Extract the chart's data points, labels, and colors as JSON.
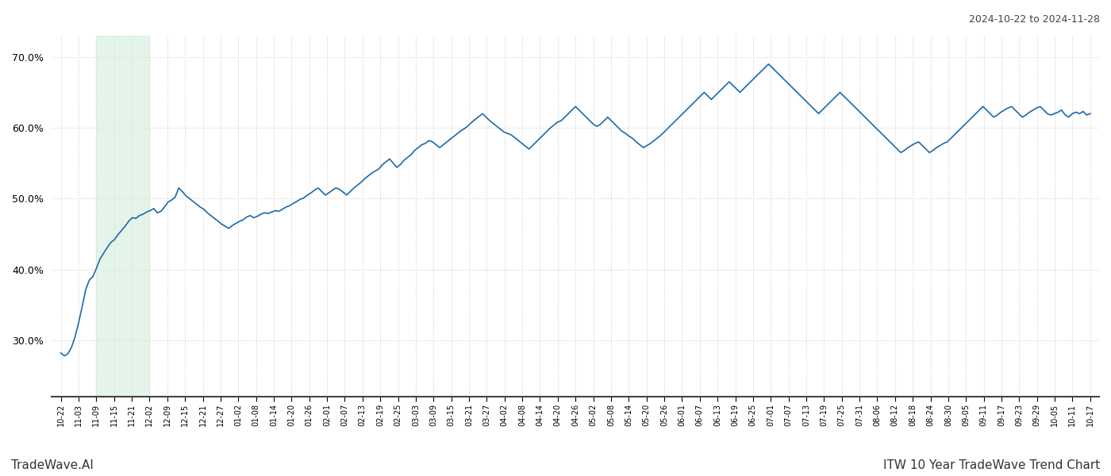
{
  "title_top_right": "2024-10-22 to 2024-11-28",
  "title_bottom_right": "ITW 10 Year TradeWave Trend Chart",
  "title_bottom_left": "TradeWave.AI",
  "line_color": "#1a6aad",
  "line_width": 1.2,
  "shade_color": "#d4edda",
  "shade_alpha": 0.6,
  "ylim": [
    22,
    73
  ],
  "yticks": [
    30,
    40,
    50,
    60,
    70
  ],
  "ytick_labels": [
    "30.0%",
    "40.0%",
    "50.0%",
    "60.0%",
    "70.0%"
  ],
  "grid_color": "#cccccc",
  "background_color": "#ffffff",
  "x_labels": [
    "10-22",
    "11-03",
    "11-09",
    "11-15",
    "11-21",
    "12-02",
    "12-09",
    "12-15",
    "12-21",
    "12-27",
    "01-02",
    "01-08",
    "01-14",
    "01-20",
    "01-26",
    "02-01",
    "02-07",
    "02-13",
    "02-19",
    "02-25",
    "03-03",
    "03-09",
    "03-15",
    "03-21",
    "03-27",
    "04-02",
    "04-08",
    "04-14",
    "04-20",
    "04-26",
    "05-02",
    "05-08",
    "05-14",
    "05-20",
    "05-26",
    "06-01",
    "06-07",
    "06-13",
    "06-19",
    "06-25",
    "07-01",
    "07-07",
    "07-13",
    "07-19",
    "07-25",
    "07-31",
    "08-06",
    "08-12",
    "08-18",
    "08-24",
    "08-30",
    "09-05",
    "09-11",
    "09-17",
    "09-23",
    "09-29",
    "10-05",
    "10-11",
    "10-17"
  ],
  "shade_x_start_label": "11-09",
  "shade_x_end_label": "12-02",
  "y_values": [
    28.2,
    27.8,
    28.1,
    29.0,
    30.5,
    32.5,
    34.8,
    37.2,
    38.5,
    39.0,
    40.2,
    41.5,
    42.3,
    43.1,
    43.8,
    44.2,
    44.9,
    45.5,
    46.1,
    46.8,
    47.3,
    47.2,
    47.6,
    47.8,
    48.1,
    48.3,
    48.6,
    48.0,
    48.2,
    48.8,
    49.5,
    49.8,
    50.2,
    51.5,
    51.0,
    50.4,
    50.0,
    49.6,
    49.2,
    48.8,
    48.5,
    48.0,
    47.6,
    47.2,
    46.8,
    46.4,
    46.1,
    45.8,
    46.2,
    46.5,
    46.8,
    47.0,
    47.4,
    47.6,
    47.3,
    47.5,
    47.8,
    48.0,
    47.9,
    48.1,
    48.3,
    48.2,
    48.5,
    48.8,
    49.0,
    49.3,
    49.6,
    49.9,
    50.1,
    50.5,
    50.8,
    51.2,
    51.5,
    51.0,
    50.5,
    50.8,
    51.2,
    51.5,
    51.3,
    50.9,
    50.5,
    51.0,
    51.5,
    51.9,
    52.3,
    52.8,
    53.2,
    53.6,
    53.9,
    54.2,
    54.8,
    55.2,
    55.6,
    55.0,
    54.4,
    54.8,
    55.4,
    55.8,
    56.2,
    56.8,
    57.2,
    57.6,
    57.8,
    58.2,
    58.0,
    57.6,
    57.2,
    57.6,
    58.0,
    58.4,
    58.8,
    59.2,
    59.6,
    59.9,
    60.3,
    60.8,
    61.2,
    61.6,
    62.0,
    61.5,
    61.0,
    60.6,
    60.2,
    59.8,
    59.4,
    59.2,
    59.0,
    58.6,
    58.2,
    57.8,
    57.4,
    57.0,
    57.5,
    58.0,
    58.5,
    59.0,
    59.5,
    60.0,
    60.4,
    60.8,
    61.0,
    61.5,
    62.0,
    62.5,
    63.0,
    62.5,
    62.0,
    61.5,
    61.0,
    60.5,
    60.2,
    60.5,
    61.0,
    61.5,
    61.0,
    60.5,
    60.0,
    59.5,
    59.2,
    58.8,
    58.5,
    58.0,
    57.6,
    57.2,
    57.5,
    57.8,
    58.2,
    58.6,
    59.0,
    59.5,
    60.0,
    60.5,
    61.0,
    61.5,
    62.0,
    62.5,
    63.0,
    63.5,
    64.0,
    64.5,
    65.0,
    64.5,
    64.0,
    64.5,
    65.0,
    65.5,
    66.0,
    66.5,
    66.0,
    65.5,
    65.0,
    65.5,
    66.0,
    66.5,
    67.0,
    67.5,
    68.0,
    68.5,
    69.0,
    68.5,
    68.0,
    67.5,
    67.0,
    66.5,
    66.0,
    65.5,
    65.0,
    64.5,
    64.0,
    63.5,
    63.0,
    62.5,
    62.0,
    62.5,
    63.0,
    63.5,
    64.0,
    64.5,
    65.0,
    64.5,
    64.0,
    63.5,
    63.0,
    62.5,
    62.0,
    61.5,
    61.0,
    60.5,
    60.0,
    59.5,
    59.0,
    58.5,
    58.0,
    57.5,
    57.0,
    56.5,
    56.8,
    57.2,
    57.5,
    57.8,
    58.0,
    57.5,
    57.0,
    56.5,
    56.8,
    57.2,
    57.5,
    57.8,
    58.0,
    58.5,
    59.0,
    59.5,
    60.0,
    60.5,
    61.0,
    61.5,
    62.0,
    62.5,
    63.0,
    62.5,
    62.0,
    61.5,
    61.8,
    62.2,
    62.5,
    62.8,
    63.0,
    62.5,
    62.0,
    61.5,
    61.8,
    62.2,
    62.5,
    62.8,
    63.0,
    62.5,
    62.0,
    61.8,
    62.0,
    62.2,
    62.5,
    61.8,
    61.5,
    62.0,
    62.2,
    62.0,
    62.3,
    61.8,
    62.0
  ]
}
